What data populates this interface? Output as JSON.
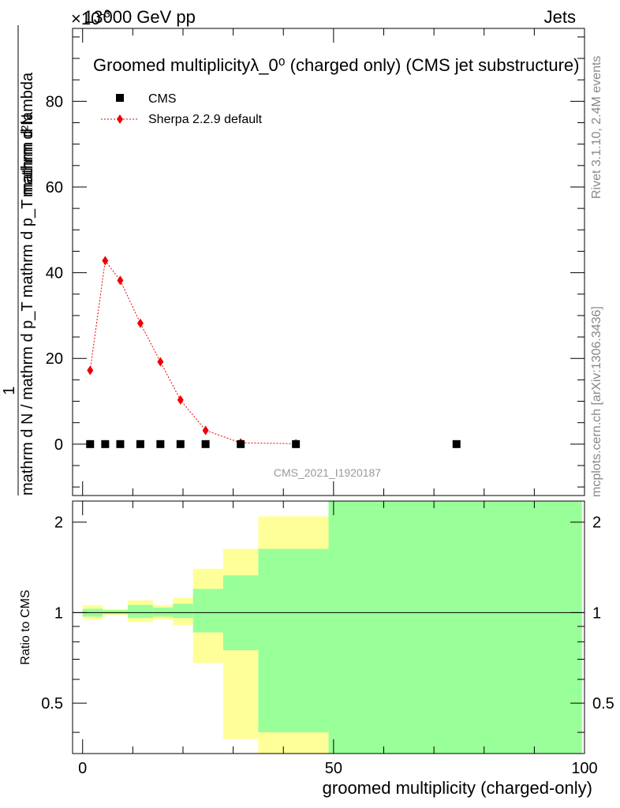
{
  "header": {
    "energy_label": "13000 GeV pp",
    "exponent_label": "×10",
    "exponent_power": "-3",
    "process_label": "Jets"
  },
  "side_text": {
    "rivet_label": "Rivet 3.1.10,  2.4M events",
    "mcplots_label": "mcplots.cern.ch [arXiv:1306.3436]"
  },
  "watermark": "CMS_2021_I1920187",
  "colors": {
    "data_marker": "#000000",
    "mc_line": "#ee0000",
    "band_inner": "#99ff99",
    "band_outer": "#ffff99",
    "side_text": "#888888",
    "watermark": "#999999"
  },
  "chart_data": [
    {
      "type": "scatter",
      "panel": "main",
      "title": "Groomed multiplicityλ_0⁰ (charged only) (CMS jet substructure)",
      "ylabel_lines": [
        "1",
        "mathrm d N / mathrm d p_T mathrm d p_T mathrm d lambda",
        "mathrm d²N"
      ],
      "ylabel": "1 / (mathrm d N / mathrm d p_T) · mathrm d²N / (mathrm d p_T mathrm d lambda)",
      "xlim": [
        -2,
        100
      ],
      "ylim": [
        -12,
        97
      ],
      "y_ticks": [
        0,
        20,
        40,
        60,
        80
      ],
      "legend_position": "top-left",
      "series": [
        {
          "name": "CMS",
          "marker": "square",
          "x": [
            1.5,
            4.5,
            7.5,
            11.5,
            15.5,
            19.5,
            24.5,
            31.5,
            42.5,
            74.5
          ],
          "y": [
            0,
            0,
            0,
            0,
            0,
            0,
            0,
            0,
            0,
            0
          ]
        },
        {
          "name": "Sherpa 2.2.9 default",
          "marker": "diamond",
          "line": "dotted",
          "x": [
            1.5,
            4.5,
            7.5,
            11.5,
            15.5,
            19.5,
            24.5,
            31.5,
            42.5
          ],
          "y": [
            17.2,
            42.8,
            38.2,
            28.2,
            19.2,
            10.3,
            3.2,
            0.3,
            0.1
          ]
        }
      ]
    },
    {
      "type": "area",
      "panel": "ratio",
      "ylabel": "Ratio to CMS",
      "xlabel": "groomed multiplicity (charged-only)",
      "xlim": [
        -2,
        100
      ],
      "ylim": [
        0.34,
        2.35
      ],
      "y_ticks": [
        0.5,
        1,
        2
      ],
      "x_ticks": [
        0,
        50,
        100
      ],
      "reference_line": 1,
      "bins": [
        {
          "x_lo": 0,
          "x_hi": 4,
          "inner_lo": 0.97,
          "inner_hi": 1.03,
          "outer_lo": 0.95,
          "outer_hi": 1.06
        },
        {
          "x_lo": 4,
          "x_hi": 9,
          "inner_lo": 0.99,
          "inner_hi": 1.02,
          "outer_lo": 0.98,
          "outer_hi": 1.03
        },
        {
          "x_lo": 9,
          "x_hi": 14,
          "inner_lo": 0.96,
          "inner_hi": 1.06,
          "outer_lo": 0.93,
          "outer_hi": 1.1
        },
        {
          "x_lo": 14,
          "x_hi": 18,
          "inner_lo": 0.97,
          "inner_hi": 1.04,
          "outer_lo": 0.95,
          "outer_hi": 1.06
        },
        {
          "x_lo": 18,
          "x_hi": 22,
          "inner_lo": 0.96,
          "inner_hi": 1.07,
          "outer_lo": 0.91,
          "outer_hi": 1.12
        },
        {
          "x_lo": 22,
          "x_hi": 28,
          "inner_lo": 0.86,
          "inner_hi": 1.2,
          "outer_lo": 0.68,
          "outer_hi": 1.4
        },
        {
          "x_lo": 28,
          "x_hi": 35,
          "inner_lo": 0.75,
          "inner_hi": 1.33,
          "outer_lo": 0.38,
          "outer_hi": 1.63
        },
        {
          "x_lo": 35,
          "x_hi": 49,
          "inner_lo": 0.4,
          "inner_hi": 1.63,
          "outer_lo": 0.34,
          "outer_hi": 2.09
        },
        {
          "x_lo": 49,
          "x_hi": 99.5,
          "inner_lo": 0.34,
          "inner_hi": 2.35,
          "outer_lo": 0.34,
          "outer_hi": 2.35
        }
      ]
    }
  ]
}
